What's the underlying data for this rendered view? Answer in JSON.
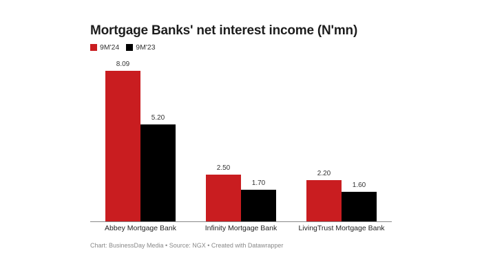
{
  "chart_data": {
    "type": "bar",
    "title": "Mortgage Banks' net interest income (N'mn)",
    "categories": [
      "Abbey Mortgage Bank",
      "Infinity Mortgage Bank",
      "LivingTrust Mortgage Bank"
    ],
    "series": [
      {
        "name": "9M'24",
        "color": "#c91d20",
        "values": [
          8.09,
          2.5,
          2.2
        ],
        "labels": [
          "8.09",
          "2.50",
          "2.20"
        ]
      },
      {
        "name": "9M'23",
        "color": "#000000",
        "values": [
          5.2,
          1.7,
          1.6
        ],
        "labels": [
          "5.20",
          "1.70",
          "1.60"
        ]
      }
    ],
    "xlabel": "",
    "ylabel": "",
    "grid": false,
    "legend_position": "top-left",
    "footer": "Chart: BusinessDay Media • Source: NGX • Created with Datawrapper"
  }
}
